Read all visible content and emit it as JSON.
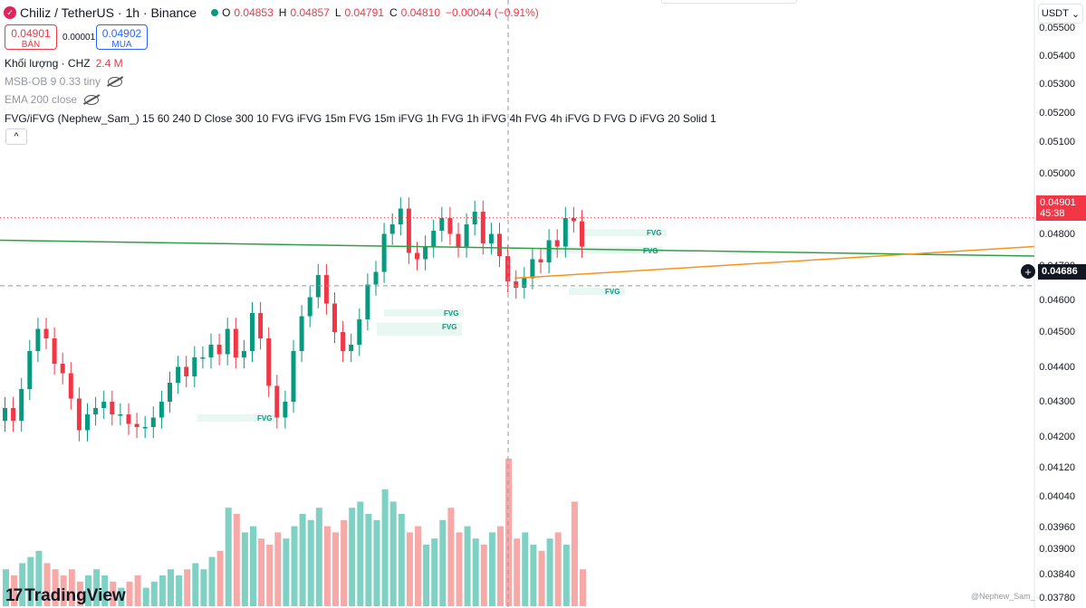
{
  "header": {
    "coin_icon": "chz-logo-icon",
    "title": "Chiliz / TetherUS · 1h · Binance",
    "status_color": "#089981",
    "open_label": "O",
    "open": "0.04853",
    "high_label": "H",
    "high": "0.04857",
    "low_label": "L",
    "low": "0.04791",
    "close_label": "C",
    "close": "0.04810",
    "change": "−0.00044 (−0.91%)"
  },
  "trade": {
    "sell_price": "0.04901",
    "sell_label": "BÁN",
    "spread": "0.00001",
    "buy_price": "0.04902",
    "buy_label": "MUA"
  },
  "indicators": {
    "volume_label": "Khối lượng · CHZ",
    "volume_value": "2.4 M",
    "msb": "MSB-OB 9 0.33 tiny",
    "ema": "EMA 200 close",
    "fvg": "FVG/iFVG (Nephew_Sam_) 15 60 240 D Close 300 10 FVG iFVG 15m FVG 15m iFVG 1h FVG 1h iFVG 4h FVG 4h iFVG D FVG D iFVG 20 Solid 1",
    "collapse_glyph": "^"
  },
  "currency": "USDT",
  "last_price_tag": {
    "price": "0.04901",
    "countdown": "45:38"
  },
  "crosshair_tag": "0.04686",
  "branding": {
    "logo": "TradingView",
    "watermark": "@Nephew_Sam_"
  },
  "colors": {
    "up": "#089981",
    "down": "#f23645",
    "up_light": "#7fd1c3",
    "down_light": "#f7a9a7",
    "ema_green": "#2ea043",
    "trend_orange": "#f7931a",
    "fvg_fill": "#e8f7f2"
  },
  "chart_data": {
    "type": "candlestick",
    "symbol": "CHZ/USDT",
    "interval": "1h",
    "y_axis_ticks": [
      "0.05500",
      "0.05400",
      "0.05300",
      "0.05200",
      "0.05100",
      "0.05000",
      "0.04900",
      "0.04800",
      "0.04700",
      "0.04600",
      "0.04500",
      "0.04400",
      "0.04300",
      "0.04200",
      "0.04120",
      "0.04040",
      "0.03960",
      "0.03900",
      "0.03840",
      "0.03780"
    ],
    "price_scale_ticks": [
      0.055,
      0.054,
      0.053,
      0.052,
      0.051,
      0.05,
      0.049,
      0.048,
      0.047,
      0.046,
      0.045,
      0.044,
      0.043,
      0.042
    ],
    "close_series": [
      0.043,
      0.0426,
      0.0436,
      0.0448,
      0.0455,
      0.0452,
      0.0444,
      0.0441,
      0.0433,
      0.0423,
      0.0428,
      0.043,
      0.0432,
      0.0428,
      0.0428,
      0.0425,
      0.0424,
      0.0424,
      0.0427,
      0.0432,
      0.0438,
      0.0443,
      0.044,
      0.0446,
      0.0446,
      0.045,
      0.0447,
      0.0455,
      0.0446,
      0.0448,
      0.046,
      0.0452,
      0.0437,
      0.0427,
      0.0432,
      0.0448,
      0.0459,
      0.0465,
      0.0472,
      0.0463,
      0.0454,
      0.0448,
      0.045,
      0.0458,
      0.0469,
      0.0473,
      0.0485,
      0.0488,
      0.0493,
      0.0479,
      0.0477,
      0.0481,
      0.0486,
      0.049,
      0.0485,
      0.0481,
      0.0488,
      0.0492,
      0.0482,
      0.0485,
      0.0478,
      0.047,
      0.0468,
      0.0471,
      0.0477,
      0.0476,
      0.0483,
      0.0481,
      0.049,
      0.0489,
      0.0481
    ],
    "volume": [
      0.6,
      0.5,
      0.7,
      0.8,
      0.9,
      0.7,
      0.6,
      0.5,
      0.6,
      0.4,
      0.5,
      0.6,
      0.5,
      0.4,
      0.3,
      0.4,
      0.5,
      0.3,
      0.4,
      0.5,
      0.6,
      0.5,
      0.6,
      0.7,
      0.6,
      0.8,
      0.9,
      1.6,
      1.5,
      1.2,
      1.3,
      1.1,
      1.0,
      1.2,
      1.1,
      1.3,
      1.5,
      1.4,
      1.6,
      1.3,
      1.2,
      1.4,
      1.6,
      1.7,
      1.5,
      1.4,
      1.9,
      1.7,
      1.5,
      1.2,
      1.3,
      1.0,
      1.1,
      1.4,
      1.6,
      1.2,
      1.3,
      1.1,
      1.0,
      1.2,
      1.3,
      2.4,
      1.1,
      1.2,
      1.0,
      0.9,
      1.1,
      1.2,
      1.0,
      1.7,
      0.6
    ],
    "overlays": [
      {
        "name": "EMA 200 close",
        "color": "green",
        "from": 0.0483,
        "to": 0.0478
      },
      {
        "name": "trendline",
        "color": "orange",
        "from": 0.0471,
        "to": 0.0481
      }
    ],
    "fvg_zones": [
      {
        "label": "FVG",
        "top": 0.04865,
        "bottom": 0.0485
      },
      {
        "label": "FVG",
        "top": 0.0481,
        "bottom": 0.04795
      },
      {
        "label": "FVG",
        "top": 0.0468,
        "bottom": 0.0467
      },
      {
        "label": "FVG",
        "top": 0.04612,
        "bottom": 0.04598
      },
      {
        "label": "FVG",
        "top": 0.0457,
        "bottom": 0.04528
      },
      {
        "label": "FVG",
        "top": 0.0428,
        "bottom": 0.04268
      }
    ],
    "last_price": 0.04901,
    "crosshair_price": 0.04686
  }
}
